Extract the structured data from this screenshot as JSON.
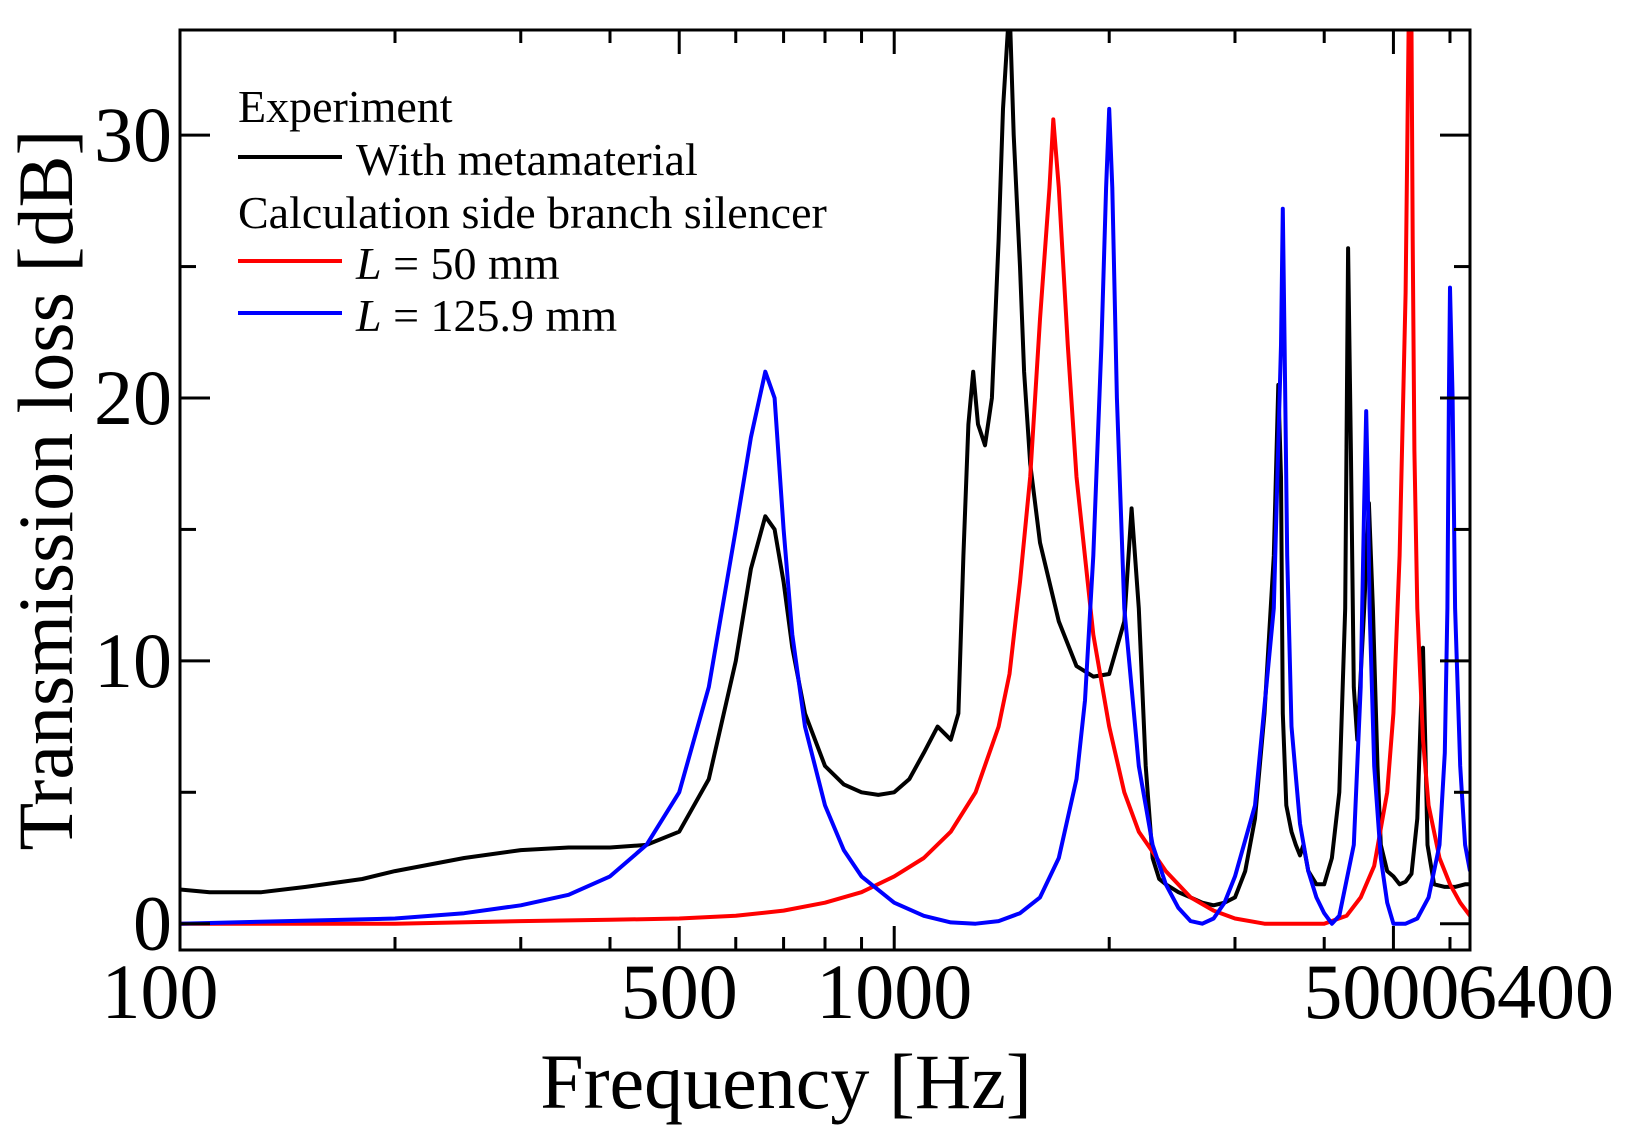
{
  "chart_data": {
    "type": "line",
    "xlabel": "Frequency [Hz]",
    "ylabel": "Transmission loss [dB]",
    "x_scale": "log",
    "xlim": [
      100,
      6400
    ],
    "ylim": [
      -1,
      34
    ],
    "x_ticks": [
      100,
      500,
      1000,
      5000,
      6400
    ],
    "x_tick_labels": [
      "100",
      "500",
      "1000",
      "5000",
      "6400"
    ],
    "x_minor_ticks": [
      200,
      300,
      400,
      600,
      700,
      800,
      900,
      2000,
      3000,
      4000,
      6000
    ],
    "y_ticks": [
      0,
      10,
      20,
      30
    ],
    "y_tick_labels": [
      "0",
      "10",
      "20",
      "30"
    ],
    "y_minor_ticks": [
      5,
      15,
      25
    ],
    "legend": {
      "position": "top-left",
      "group1_title": "Experiment",
      "group2_title": "Calculation side branch silencer",
      "entries": [
        {
          "series": "experiment",
          "text": "With metamaterial"
        },
        {
          "series": "L50",
          "prefix": "L",
          "text": " = 50 mm"
        },
        {
          "series": "L125",
          "prefix": "L",
          "text": " = 125.9 mm"
        }
      ]
    },
    "series": [
      {
        "key": "experiment",
        "name": "With metamaterial",
        "color": "#000000",
        "x": [
          100,
          110,
          130,
          150,
          180,
          200,
          250,
          300,
          350,
          400,
          450,
          500,
          550,
          600,
          630,
          660,
          680,
          700,
          720,
          750,
          800,
          850,
          900,
          950,
          1000,
          1050,
          1100,
          1150,
          1200,
          1230,
          1250,
          1270,
          1290,
          1310,
          1340,
          1370,
          1400,
          1420,
          1450,
          1470,
          1500,
          1520,
          1550,
          1600,
          1700,
          1800,
          1900,
          2000,
          2100,
          2150,
          2200,
          2250,
          2300,
          2350,
          2400,
          2500,
          2600,
          2700,
          2800,
          2900,
          3000,
          3100,
          3200,
          3300,
          3400,
          3450,
          3480,
          3500,
          3540,
          3600,
          3650,
          3700,
          3740,
          3800,
          3900,
          4000,
          4100,
          4200,
          4280,
          4320,
          4360,
          4400,
          4450,
          4550,
          4620,
          4680,
          4750,
          4800,
          4900,
          5000,
          5100,
          5200,
          5300,
          5400,
          5500,
          5540,
          5580,
          5700,
          5900,
          6100,
          6300,
          6400
        ],
        "y": [
          1.3,
          1.2,
          1.2,
          1.4,
          1.7,
          2.0,
          2.5,
          2.8,
          2.9,
          2.9,
          3.0,
          3.5,
          5.5,
          10.0,
          13.5,
          15.5,
          15.0,
          13.0,
          10.5,
          8.0,
          6.0,
          5.3,
          5.0,
          4.9,
          5.0,
          5.5,
          6.5,
          7.5,
          7.0,
          8.0,
          14.0,
          19.0,
          21.0,
          19.0,
          18.2,
          20.0,
          26.0,
          31.0,
          35.0,
          30.0,
          25.0,
          21.0,
          17.5,
          14.5,
          11.5,
          9.8,
          9.4,
          9.5,
          11.5,
          15.8,
          12.0,
          6.0,
          2.5,
          1.7,
          1.5,
          1.2,
          1.0,
          0.8,
          0.7,
          0.8,
          1.0,
          2.0,
          4.0,
          8.0,
          14.0,
          20.5,
          17.0,
          8.0,
          4.5,
          3.5,
          3.0,
          2.6,
          3.0,
          2.0,
          1.5,
          1.5,
          2.5,
          5.0,
          12.0,
          25.7,
          18.0,
          9.0,
          7.0,
          12.0,
          16.0,
          12.0,
          6.0,
          3.0,
          2.0,
          1.8,
          1.5,
          1.6,
          1.9,
          4.0,
          10.5,
          7.0,
          3.0,
          1.5,
          1.4,
          1.4,
          1.5,
          1.5
        ]
      },
      {
        "key": "L50",
        "name": "L = 50 mm",
        "color": "#ff0000",
        "x": [
          100,
          200,
          300,
          400,
          500,
          600,
          700,
          800,
          900,
          1000,
          1100,
          1200,
          1300,
          1400,
          1450,
          1500,
          1550,
          1600,
          1650,
          1670,
          1700,
          1750,
          1800,
          1900,
          2000,
          2100,
          2200,
          2400,
          2600,
          2800,
          3000,
          3300,
          3600,
          4000,
          4300,
          4500,
          4700,
          4900,
          5000,
          5100,
          5200,
          5250,
          5280,
          5300,
          5320,
          5350,
          5400,
          5500,
          5600,
          5800,
          6000,
          6200,
          6400
        ],
        "y": [
          0.0,
          0.0,
          0.1,
          0.15,
          0.2,
          0.3,
          0.5,
          0.8,
          1.2,
          1.8,
          2.5,
          3.5,
          5.0,
          7.5,
          9.5,
          13.0,
          17.0,
          23.0,
          28.0,
          30.6,
          28.0,
          22.0,
          17.0,
          11.0,
          7.5,
          5.0,
          3.5,
          2.0,
          1.0,
          0.5,
          0.2,
          0.0,
          0.0,
          0.0,
          0.3,
          1.0,
          2.2,
          5.0,
          8.0,
          14.0,
          24.0,
          34.0,
          36.0,
          34.0,
          26.0,
          18.0,
          12.0,
          7.0,
          4.5,
          2.5,
          1.5,
          0.8,
          0.3
        ]
      },
      {
        "key": "L125",
        "name": "L = 125.9 mm",
        "color": "#0000ff",
        "x": [
          100,
          200,
          250,
          300,
          350,
          400,
          450,
          500,
          550,
          600,
          630,
          660,
          680,
          700,
          720,
          750,
          800,
          850,
          900,
          1000,
          1100,
          1200,
          1300,
          1400,
          1500,
          1600,
          1700,
          1800,
          1850,
          1900,
          1950,
          1980,
          2000,
          2020,
          2050,
          2100,
          2200,
          2300,
          2400,
          2500,
          2600,
          2700,
          2800,
          2900,
          3000,
          3200,
          3400,
          3480,
          3500,
          3520,
          3550,
          3600,
          3700,
          3800,
          3900,
          4000,
          4100,
          4200,
          4400,
          4500,
          4550,
          4580,
          4600,
          4630,
          4700,
          4800,
          4900,
          5000,
          5200,
          5400,
          5600,
          5800,
          5900,
          5950,
          5980,
          6000,
          6050,
          6100,
          6200,
          6300,
          6400
        ],
        "y": [
          0.0,
          0.2,
          0.4,
          0.7,
          1.1,
          1.8,
          3.0,
          5.0,
          9.0,
          15.0,
          18.5,
          21.0,
          20.0,
          15.0,
          11.0,
          7.5,
          4.5,
          2.8,
          1.8,
          0.8,
          0.3,
          0.05,
          0.0,
          0.1,
          0.4,
          1.0,
          2.5,
          5.5,
          8.5,
          14.0,
          22.0,
          28.0,
          31.0,
          28.0,
          20.0,
          12.0,
          6.0,
          3.0,
          1.5,
          0.6,
          0.1,
          0.0,
          0.2,
          0.8,
          1.8,
          4.5,
          12.0,
          22.0,
          27.2,
          22.0,
          14.0,
          7.5,
          3.8,
          2.0,
          1.0,
          0.4,
          0.0,
          0.3,
          3.0,
          9.0,
          16.0,
          19.5,
          17.0,
          12.0,
          6.0,
          2.5,
          0.8,
          0.0,
          0.0,
          0.2,
          1.0,
          3.0,
          6.5,
          12.0,
          20.0,
          24.2,
          20.0,
          12.0,
          6.0,
          3.0,
          2.0
        ]
      }
    ]
  }
}
